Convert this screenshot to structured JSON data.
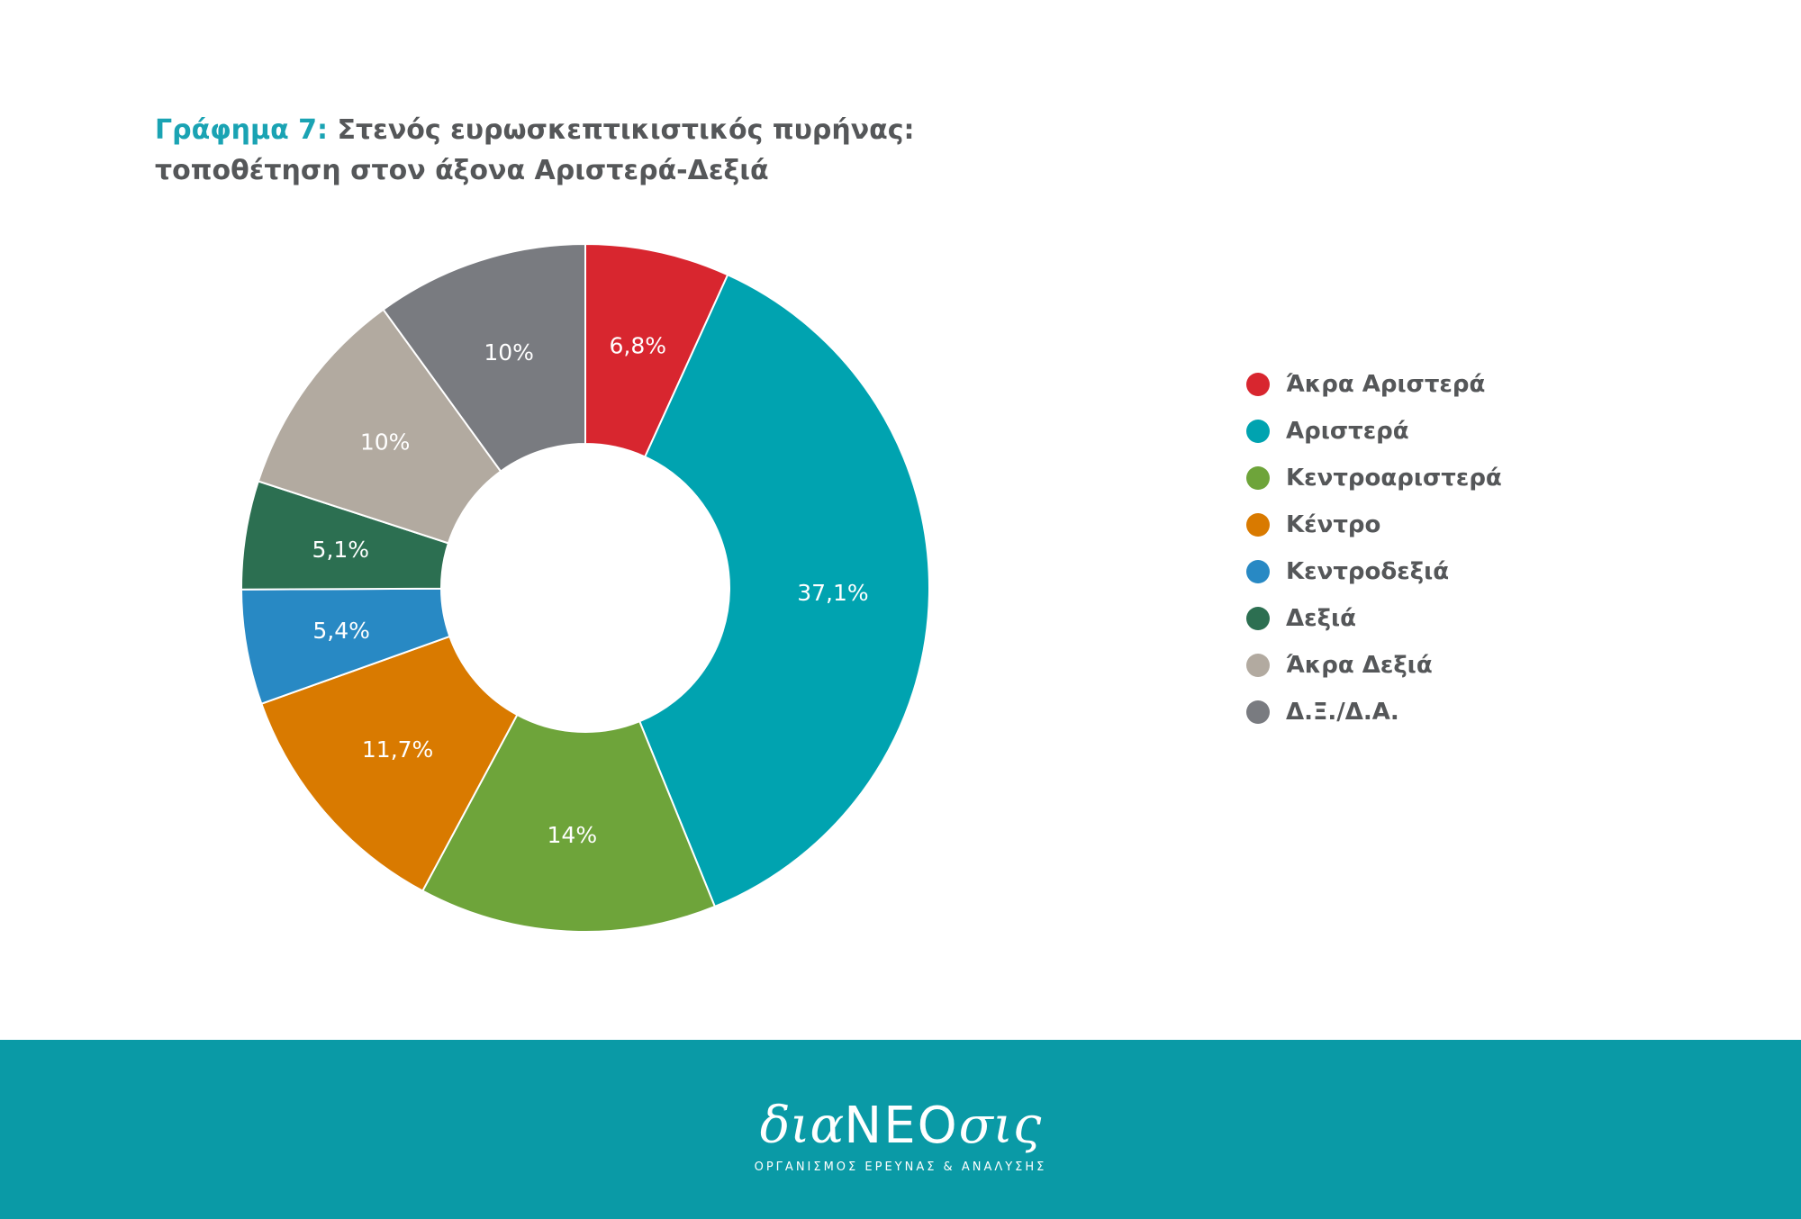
{
  "title": {
    "prefix": "Γράφημα 7:",
    "line1": " Στενός ευρωσκεπτικιστικός πυρήνας:",
    "line2": "τοποθέτηση στον άξονα Αριστερά-Δεξιά"
  },
  "chart_data": {
    "type": "pie",
    "variant": "donut",
    "categories": [
      "Άκρα Αριστερά",
      "Αριστερά",
      "Κεντροαριστερά",
      "Κέντρο",
      "Κεντροδεξιά",
      "Δεξιά",
      "Άκρα Δεξιά",
      "Δ.Ξ./Δ.Α."
    ],
    "values": [
      6.8,
      37.1,
      14,
      11.7,
      5.4,
      5.1,
      10,
      10
    ],
    "value_labels": [
      "6,8%",
      "37,1%",
      "14%",
      "11,7%",
      "5,4%",
      "5,1%",
      "10%",
      "10%"
    ],
    "colors": [
      "#d8262f",
      "#00a3b0",
      "#6ea43a",
      "#d97a00",
      "#2889c4",
      "#2c6f51",
      "#b2aaa0",
      "#797b80"
    ],
    "legend_position": "right",
    "start": "12 o'clock, clockwise"
  },
  "footer": {
    "logo_prefix": "δια",
    "logo_caps": "ΝΕΟ",
    "logo_suffix": "σις",
    "tagline": "ΟΡΓΑΝΙΣΜΟΣ ΕΡΕΥΝΑΣ & ΑΝΑΛΥΣΗΣ",
    "background_color": "#0a9aa6"
  }
}
